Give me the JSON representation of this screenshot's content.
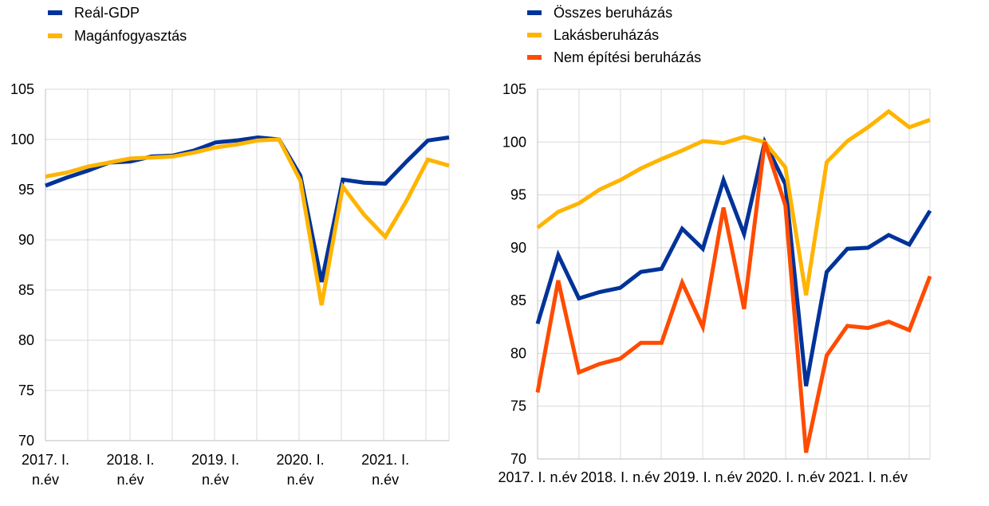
{
  "chart_data": [
    {
      "type": "line",
      "categories": [
        "2017 Q1",
        "2017 Q2",
        "2017 Q3",
        "2017 Q4",
        "2018 Q1",
        "2018 Q2",
        "2018 Q3",
        "2018 Q4",
        "2019 Q1",
        "2019 Q2",
        "2019 Q3",
        "2019 Q4",
        "2020 Q1",
        "2020 Q2",
        "2020 Q3",
        "2020 Q4",
        "2021 Q1",
        "2021 Q2",
        "2021 Q3",
        "2021 Q4"
      ],
      "x_tick_labels": [
        {
          "index": 0,
          "lines": [
            "2017. I.",
            "n.év"
          ]
        },
        {
          "index": 4,
          "lines": [
            "2018. I.",
            "n.év"
          ]
        },
        {
          "index": 8,
          "lines": [
            "2019. I.",
            "n.év"
          ]
        },
        {
          "index": 12,
          "lines": [
            "2020. I.",
            "n.év"
          ]
        },
        {
          "index": 16,
          "lines": [
            "2021. I.",
            "n.év"
          ]
        }
      ],
      "y_ticks": [
        70,
        75,
        80,
        85,
        90,
        95,
        100,
        105
      ],
      "ylim": [
        70,
        105
      ],
      "grid": true,
      "legend_position": "top-left",
      "series": [
        {
          "name": "Reál-GDP",
          "color": "#003299",
          "values": [
            95.4,
            96.2,
            96.9,
            97.7,
            97.8,
            98.3,
            98.4,
            98.9,
            99.7,
            99.9,
            100.2,
            100.0,
            96.4,
            85.8,
            96.0,
            95.7,
            95.6,
            97.8,
            99.9,
            100.2
          ]
        },
        {
          "name": "Magánfogyasztás",
          "color": "#FFB400",
          "values": [
            96.3,
            96.7,
            97.3,
            97.7,
            98.1,
            98.2,
            98.3,
            98.7,
            99.2,
            99.5,
            99.9,
            100.0,
            95.9,
            83.5,
            95.3,
            92.5,
            90.3,
            93.9,
            98.0,
            97.4
          ]
        }
      ]
    },
    {
      "type": "line",
      "categories": [
        "2017 Q1",
        "2017 Q2",
        "2017 Q3",
        "2017 Q4",
        "2018 Q1",
        "2018 Q2",
        "2018 Q3",
        "2018 Q4",
        "2019 Q1",
        "2019 Q2",
        "2019 Q3",
        "2019 Q4",
        "2020 Q1",
        "2020 Q2",
        "2020 Q3",
        "2020 Q4",
        "2021 Q1",
        "2021 Q2",
        "2021 Q3",
        "2021 Q4"
      ],
      "x_tick_labels": [
        {
          "index": 0,
          "lines": [
            "2017. I. n.év"
          ]
        },
        {
          "index": 4,
          "lines": [
            "2018. I. n.év"
          ]
        },
        {
          "index": 8,
          "lines": [
            "2019. I. n.év"
          ]
        },
        {
          "index": 12,
          "lines": [
            "2020. I. n.év"
          ]
        },
        {
          "index": 16,
          "lines": [
            "2021. I. n.év"
          ]
        }
      ],
      "y_ticks": [
        70,
        75,
        80,
        85,
        90,
        95,
        100,
        105
      ],
      "ylim": [
        70,
        105
      ],
      "grid": true,
      "legend_position": "top-left",
      "series": [
        {
          "name": "Összes beruházás",
          "color": "#003299",
          "values": [
            82.8,
            89.3,
            85.2,
            85.8,
            86.2,
            87.7,
            88.0,
            91.8,
            89.9,
            96.4,
            91.3,
            100.0,
            96.0,
            76.9,
            87.7,
            89.9,
            90.0,
            91.2,
            90.3,
            93.5
          ]
        },
        {
          "name": "Lakásberuházás",
          "color": "#FFB400",
          "values": [
            91.9,
            93.4,
            94.2,
            95.5,
            96.4,
            97.5,
            98.4,
            99.2,
            100.1,
            99.9,
            100.5,
            100.0,
            97.6,
            85.5,
            98.1,
            100.1,
            101.4,
            102.9,
            101.4,
            102.1
          ]
        },
        {
          "name": "Nem építési beruházás",
          "color": "#FF4B00",
          "values": [
            76.3,
            86.9,
            78.2,
            79.0,
            79.5,
            81.0,
            81.0,
            86.7,
            82.5,
            93.8,
            84.2,
            100.0,
            94.0,
            70.6,
            79.8,
            82.6,
            82.4,
            83.0,
            82.2,
            87.3
          ]
        }
      ]
    }
  ]
}
